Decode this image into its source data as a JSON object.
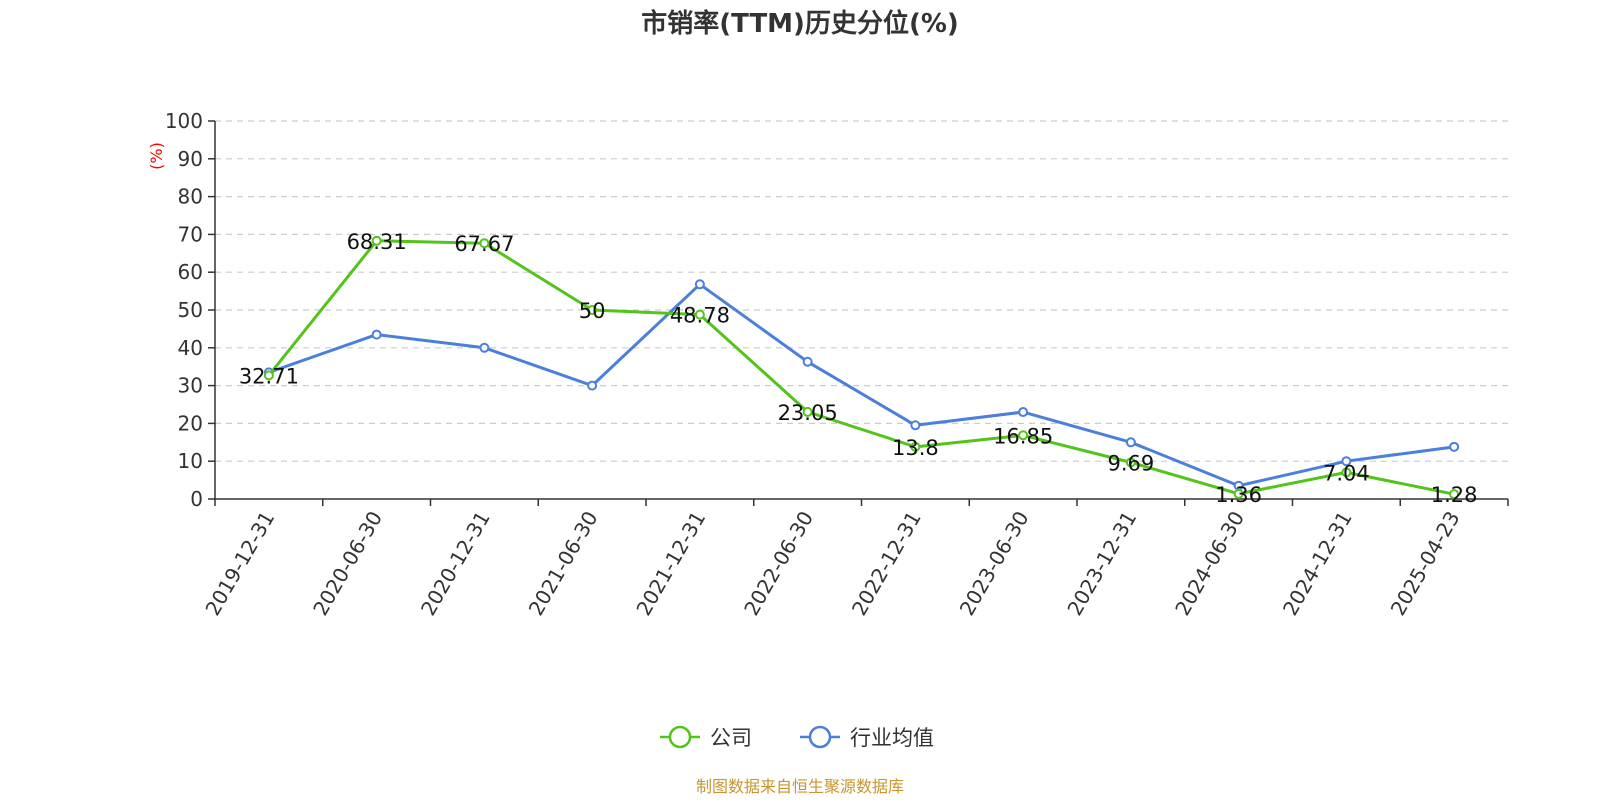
{
  "chart_data": {
    "type": "line",
    "title": "市销率(TTM)历史分位(%)",
    "y_unit_label": "(%)",
    "categories": [
      "2019-12-31",
      "2020-06-30",
      "2020-12-31",
      "2021-06-30",
      "2021-12-31",
      "2022-06-30",
      "2022-12-31",
      "2023-06-30",
      "2023-12-31",
      "2024-06-30",
      "2024-12-31",
      "2025-04-23"
    ],
    "ylim": [
      0,
      100
    ],
    "yticks": [
      0,
      10,
      20,
      30,
      40,
      50,
      60,
      70,
      80,
      90,
      100
    ],
    "grid": true,
    "legend_position": "bottom-center",
    "series": [
      {
        "name": "公司",
        "color": "#52c41a",
        "values": [
          32.71,
          68.31,
          67.67,
          50,
          48.78,
          23.05,
          13.8,
          16.85,
          9.69,
          1.36,
          7.04,
          1.28
        ],
        "data_labels": [
          "32.71",
          "68.31",
          "67.67",
          "50",
          "48.78",
          "23.05",
          "13.8",
          "16.85",
          "9.69",
          "1.36",
          "7.04",
          "1.28"
        ]
      },
      {
        "name": "行业均值",
        "color": "#4a7fdc",
        "values": [
          33.5,
          43.5,
          40,
          30,
          56.8,
          36.3,
          19.5,
          23,
          15,
          3.5,
          10,
          13.8
        ]
      }
    ]
  },
  "source_text": "制图数据来自恒生聚源数据库",
  "source_color": "#c8962e",
  "unit_color": "#ff0000"
}
